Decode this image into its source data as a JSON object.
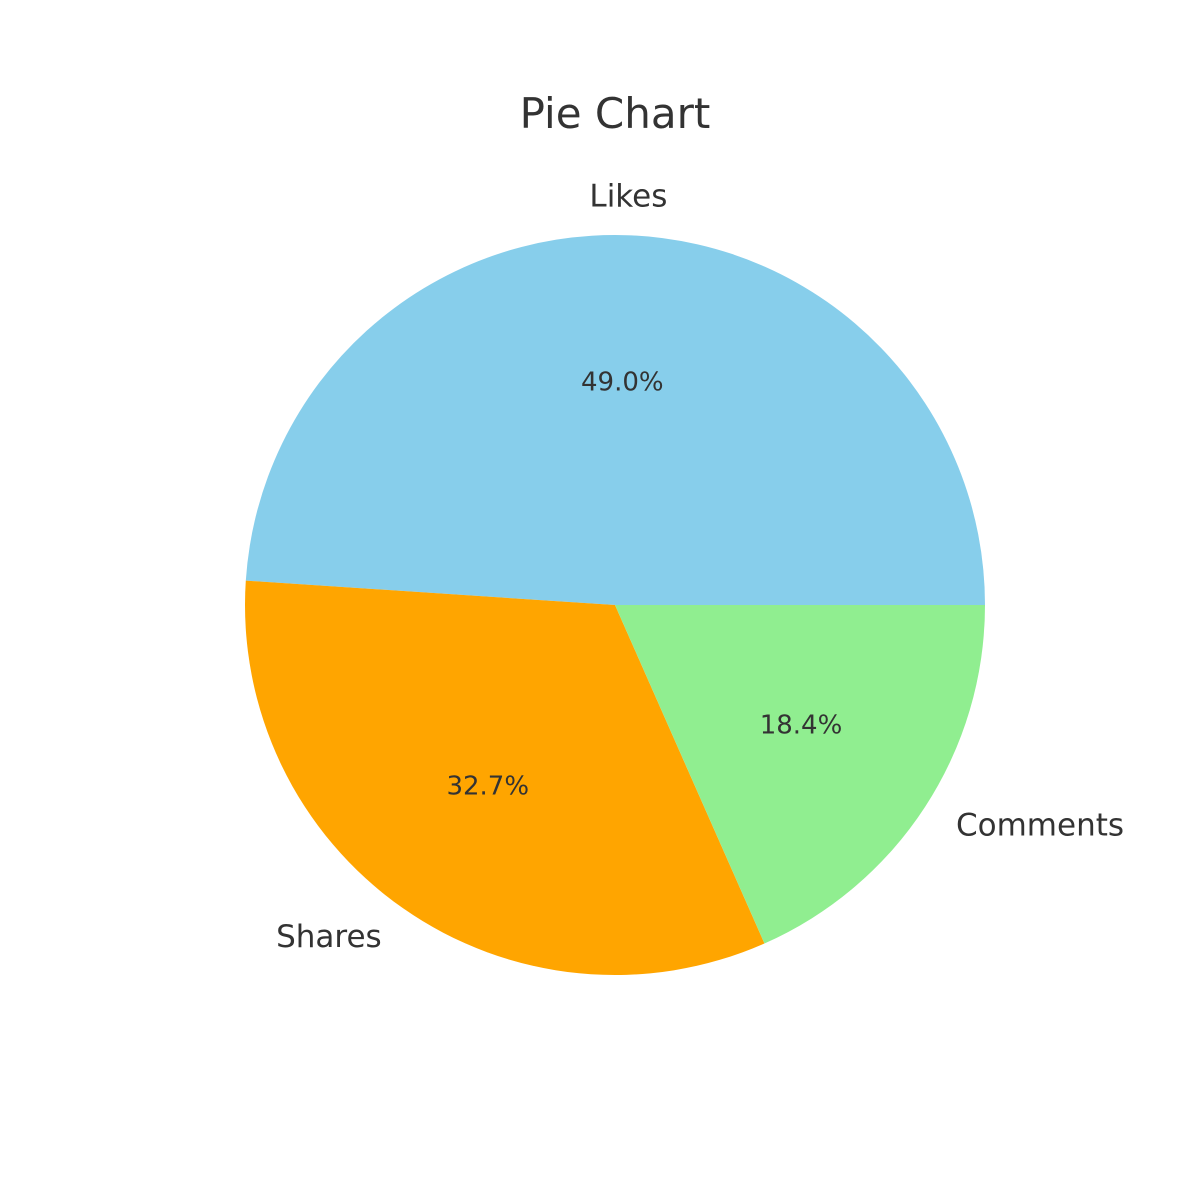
{
  "chart_data": {
    "type": "pie",
    "title": "Pie Chart",
    "categories": [
      "Likes",
      "Shares",
      "Comments"
    ],
    "values": [
      49.0,
      32.7,
      18.4
    ],
    "percent_labels": [
      "49.0%",
      "32.7%",
      "18.4%"
    ],
    "colors": [
      "#87CEEB",
      "#FFA500",
      "#90EE90"
    ],
    "start_angle_deg": 0,
    "direction": "counterclockwise",
    "legend": "none"
  }
}
